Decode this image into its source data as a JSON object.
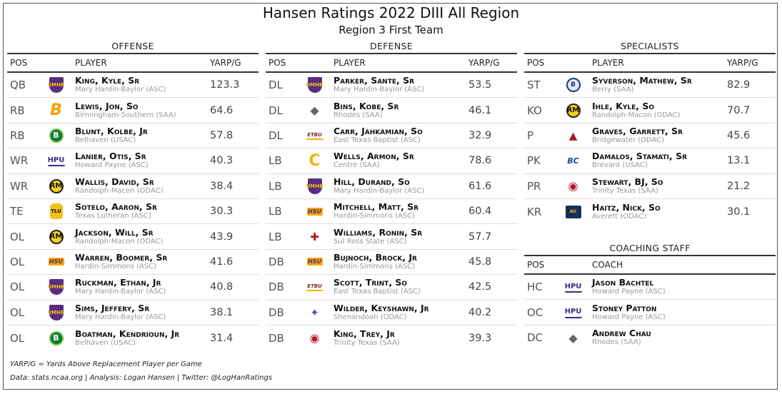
{
  "title": "Hansen Ratings 2022 DIII All Region",
  "subtitle": "Region 3 First Team",
  "player_headers": {
    "pos": "POS",
    "player": "PLAYER",
    "value": "YARP/G"
  },
  "coach_headers": {
    "pos": "POS",
    "coach": "COACH"
  },
  "offense": {
    "title": "OFFENSE",
    "rows": [
      {
        "pos": "QB",
        "name": "King, Kyle, Sr",
        "school": "Mary Hardin-Baylor (ASC)",
        "value": "123.3",
        "logo": "umhb-shield-icon",
        "logo_text": "UMHB"
      },
      {
        "pos": "RB",
        "name": "Lewis, Jon, So",
        "school": "Birmingham-Southern (SAA)",
        "value": "64.6",
        "logo": "bsc-b-icon",
        "logo_text": "B"
      },
      {
        "pos": "RB",
        "name": "Blunt, Kolbe, Jr",
        "school": "Belhaven (USAC)",
        "value": "57.8",
        "logo": "belhaven-icon",
        "logo_text": "B"
      },
      {
        "pos": "WR",
        "name": "Lanier, Otis, Sr",
        "school": "Howard Payne (ASC)",
        "value": "40.3",
        "logo": "hpu-icon",
        "logo_text": "HPU"
      },
      {
        "pos": "WR",
        "name": "Wallis, David, Sr",
        "school": "Randolph-Macon (ODAC)",
        "value": "38.4",
        "logo": "yellowjacket-icon",
        "logo_text": "RM"
      },
      {
        "pos": "TE",
        "name": "Sotelo, Aaron, Sr",
        "school": "Texas Lutheran (ASC)",
        "value": "30.3",
        "logo": "tlu-icon",
        "logo_text": "TLU"
      },
      {
        "pos": "OL",
        "name": "Jackson, Will, Sr",
        "school": "Randolph-Macon (ODAC)",
        "value": "43.9",
        "logo": "yellowjacket-icon",
        "logo_text": "RM"
      },
      {
        "pos": "OL",
        "name": "Warren, Boomer, Sr",
        "school": "Hardin-Simmons (ASC)",
        "value": "41.6",
        "logo": "hsu-icon",
        "logo_text": "HSU"
      },
      {
        "pos": "OL",
        "name": "Ruckman, Ethan, Jr",
        "school": "Mary Hardin-Baylor (ASC)",
        "value": "40.8",
        "logo": "umhb-shield-icon",
        "logo_text": "UMHB"
      },
      {
        "pos": "OL",
        "name": "Sims, Jeffery, Sr",
        "school": "Mary Hardin-Baylor (ASC)",
        "value": "38.1",
        "logo": "umhb-shield-icon",
        "logo_text": "UMHB"
      },
      {
        "pos": "OL",
        "name": "Boatman, Kendrioun, Jr",
        "school": "Belhaven (USAC)",
        "value": "31.4",
        "logo": "belhaven-icon",
        "logo_text": "B"
      }
    ]
  },
  "defense": {
    "title": "DEFENSE",
    "rows": [
      {
        "pos": "DL",
        "name": "Parker, Sante, Sr",
        "school": "Mary Hardin-Baylor (ASC)",
        "value": "53.5",
        "logo": "umhb-shield-icon",
        "logo_text": "UMHB"
      },
      {
        "pos": "DL",
        "name": "Bins, Kobe, Sr",
        "school": "Rhodes (SAA)",
        "value": "46.1",
        "logo": "lynx-icon",
        "logo_text": "◆"
      },
      {
        "pos": "DL",
        "name": "Carr, Jahkamian, So",
        "school": "East Texas Baptist (ASC)",
        "value": "32.9",
        "logo": "etbu-icon",
        "logo_text": "ETBU"
      },
      {
        "pos": "LB",
        "name": "Wells, Armon, Sr",
        "school": "Centre (SAA)",
        "value": "78.6",
        "logo": "centre-c-icon",
        "logo_text": "C"
      },
      {
        "pos": "LB",
        "name": "Hill, Durand, So",
        "school": "Mary Hardin-Baylor (ASC)",
        "value": "61.6",
        "logo": "umhb-shield-icon",
        "logo_text": "UMHB"
      },
      {
        "pos": "LB",
        "name": "Mitchell, Matt, Sr",
        "school": "Hardin-Simmons (ASC)",
        "value": "60.4",
        "logo": "hsu-icon",
        "logo_text": "HSU"
      },
      {
        "pos": "LB",
        "name": "Williams, Ronin, Sr",
        "school": "Sul Ross State (ASC)",
        "value": "57.7",
        "logo": "sul-ross-icon",
        "logo_text": "✚"
      },
      {
        "pos": "DB",
        "name": "Bujnoch, Brock, Jr",
        "school": "Hardin-Simmons (ASC)",
        "value": "45.8",
        "logo": "hsu-icon",
        "logo_text": "HSU"
      },
      {
        "pos": "DB",
        "name": "Scott, Trint, So",
        "school": "East Texas Baptist (ASC)",
        "value": "42.5",
        "logo": "etbu-icon",
        "logo_text": "ETBU"
      },
      {
        "pos": "DB",
        "name": "Wilder, Keyshawn, Jr",
        "school": "Shenandoah (ODAC)",
        "value": "40.2",
        "logo": "hornet-icon",
        "logo_text": "✦"
      },
      {
        "pos": "DB",
        "name": "King, Trey, Jr",
        "school": "Trinity Texas (SAA)",
        "value": "39.3",
        "logo": "tiger-icon",
        "logo_text": "◉"
      }
    ]
  },
  "specialists": {
    "title": "SPECIALISTS",
    "rows": [
      {
        "pos": "ST",
        "name": "Syverson, Mathew, Sr",
        "school": "Berry (SAA)",
        "value": "82.9",
        "logo": "berry-icon",
        "logo_text": "B"
      },
      {
        "pos": "KO",
        "name": "Ihle, Kyle, So",
        "school": "Randolph-Macon (ODAC)",
        "value": "70.7",
        "logo": "yellowjacket-icon",
        "logo_text": "RM"
      },
      {
        "pos": "P",
        "name": "Graves, Garrett, Sr",
        "school": "Bridgewater (ODAC)",
        "value": "45.6",
        "logo": "eagle-icon",
        "logo_text": "▲"
      },
      {
        "pos": "PK",
        "name": "Damalos, Stamati, Sr",
        "school": "Brevard (USAC)",
        "value": "13.1",
        "logo": "brevard-icon",
        "logo_text": "BC"
      },
      {
        "pos": "PR",
        "name": "Stewart, BJ, So",
        "school": "Trinity Texas (SAA)",
        "value": "21.2",
        "logo": "tiger-icon",
        "logo_text": "◉"
      },
      {
        "pos": "KR",
        "name": "Haitz, Nick, So",
        "school": "Averett (ODAC)",
        "value": "30.1",
        "logo": "averett-icon",
        "logo_text": "AU"
      }
    ]
  },
  "coaching": {
    "title": "COACHING STAFF",
    "rows": [
      {
        "pos": "HC",
        "name": "Jason Bachtel",
        "school": "Howard Payne (ASC)",
        "logo": "hpu-icon",
        "logo_text": "HPU"
      },
      {
        "pos": "OC",
        "name": "Stoney Patton",
        "school": "Howard Payne (ASC)",
        "logo": "hpu-icon",
        "logo_text": "HPU"
      },
      {
        "pos": "DC",
        "name": "Andrew Chau",
        "school": "Rhodes (SAA)",
        "logo": "lynx-icon",
        "logo_text": "◆"
      }
    ]
  },
  "footnotes": {
    "definition": "YARP/G = Yards Above Replacement Player per Game",
    "credits": "Data: stats.ncaa.org | Analysis: Logan Hansen | Twitter: @LogHanRatings"
  }
}
